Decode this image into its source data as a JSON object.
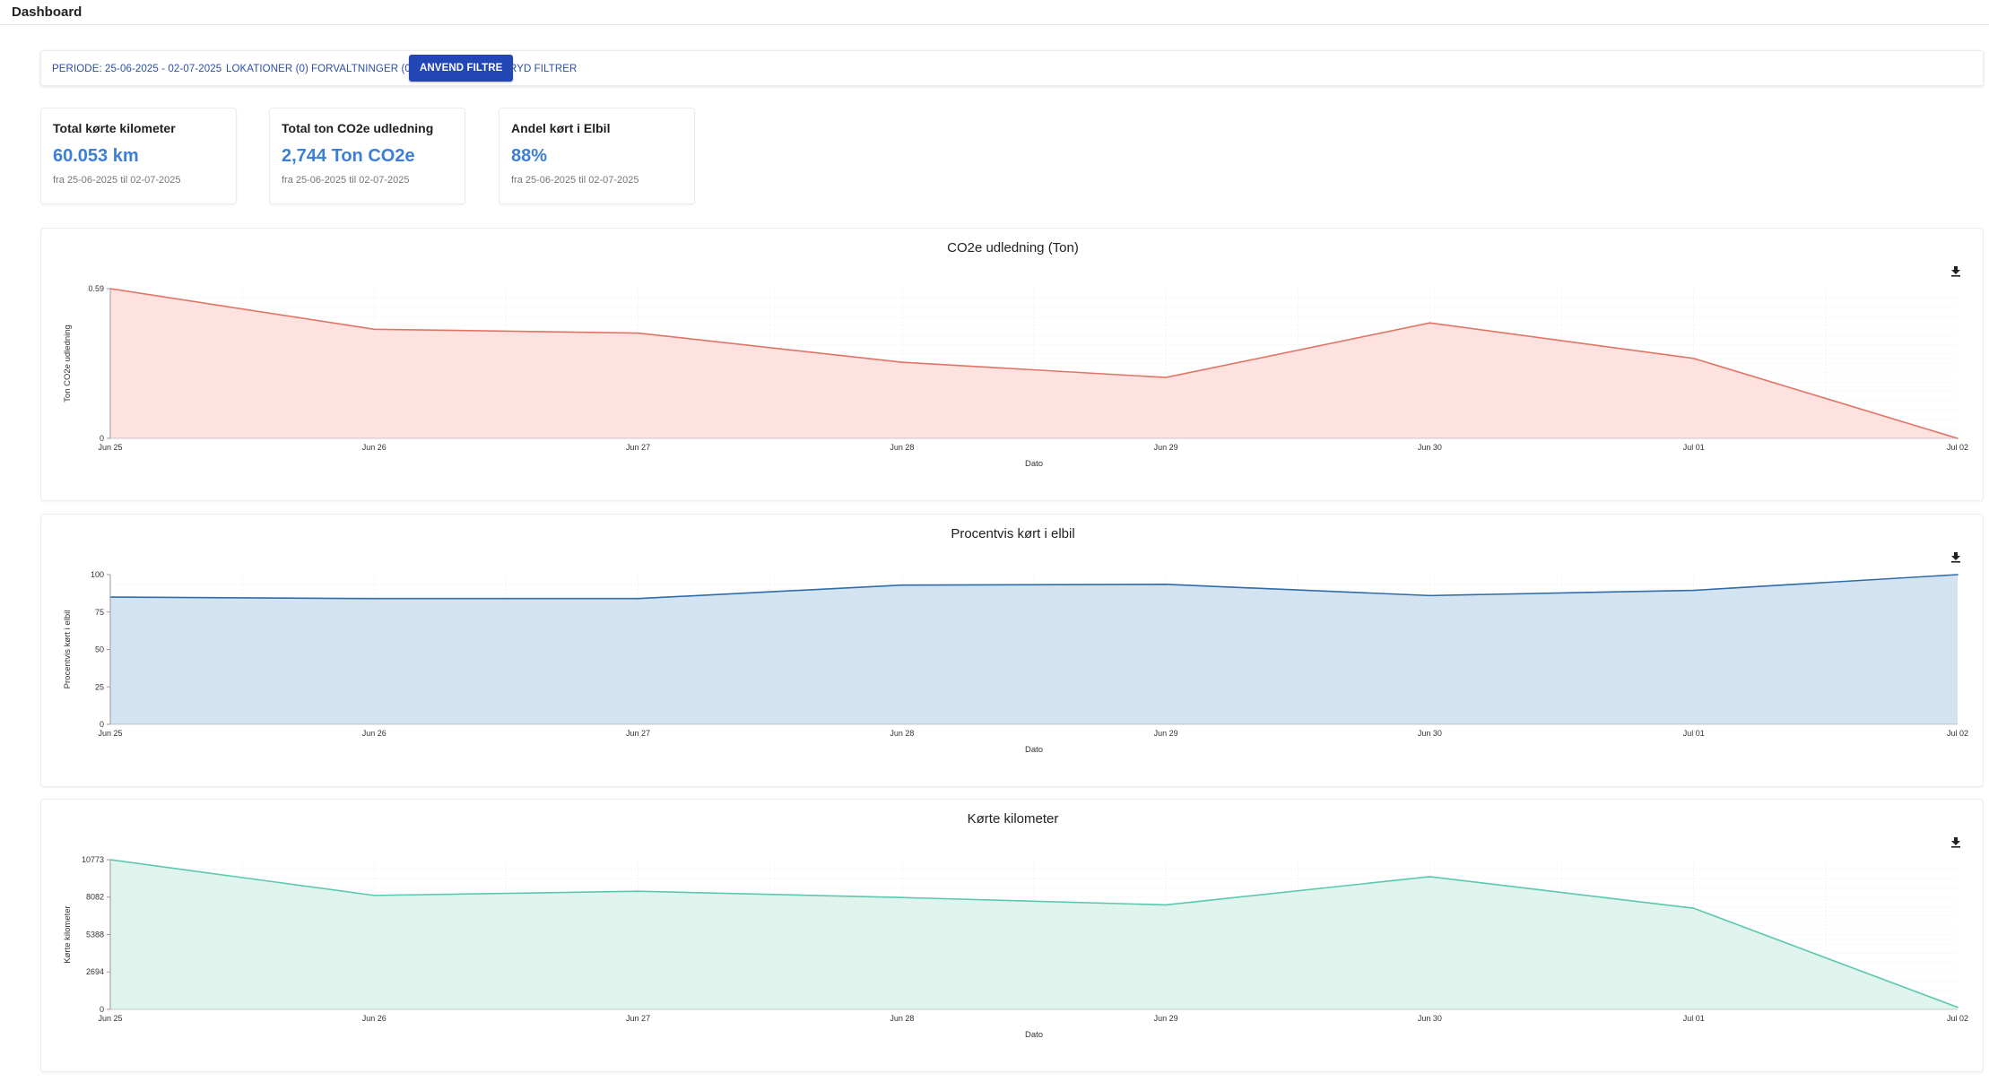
{
  "header": {
    "title": "Dashboard"
  },
  "filters": {
    "period": "PERIODE: 25-06-2025 - 02-07-2025",
    "locations": "LOKATIONER (0)",
    "administrations": "FORVALTNINGER (0)",
    "apply": "ANVEND FILTRE",
    "clear": "RYD FILTRER"
  },
  "kpis": [
    {
      "title": "Total kørte kilometer",
      "value": "60.053 km",
      "subtitle": "fra 25-06-2025 til 02-07-2025"
    },
    {
      "title": "Total ton CO2e udledning",
      "value": "2,744 Ton CO2e",
      "subtitle": "fra 25-06-2025 til 02-07-2025"
    },
    {
      "title": "Andel kørt i Elbil",
      "value": "88%",
      "subtitle": "fra 25-06-2025 til 02-07-2025"
    }
  ],
  "icons": {
    "download": "download-icon"
  },
  "chart_data": [
    {
      "type": "area",
      "title": "CO2e udledning (Ton)",
      "xlabel": "Dato",
      "ylabel": "Ton CO2e udledning",
      "x": [
        "Jun 25",
        "Jun 26",
        "Jun 27",
        "Jun 28",
        "Jun 29",
        "Jun 30",
        "Jul 01",
        "Jul 02"
      ],
      "values": [
        0.59,
        0.43,
        0.415,
        0.3,
        0.24,
        0.455,
        0.315,
        0.0
      ],
      "ylim": [
        0,
        0.59
      ],
      "yticks": [
        "0",
        "0.59"
      ],
      "grid": true,
      "color": "#e07566",
      "fill": "#fde0dd"
    },
    {
      "type": "area",
      "title": "Procentvis kørt i elbil",
      "xlabel": "Dato",
      "ylabel": "Procentvis kørt i elbil",
      "x": [
        "Jun 25",
        "Jun 26",
        "Jun 27",
        "Jun 28",
        "Jun 29",
        "Jun 30",
        "Jul 01",
        "Jul 02"
      ],
      "values": [
        85,
        84,
        84,
        93,
        93.5,
        86,
        89.5,
        100
      ],
      "ylim": [
        0,
        100
      ],
      "yticks": [
        "0",
        "25",
        "50",
        "75",
        "100"
      ],
      "grid": true,
      "color": "#2f6da8",
      "fill": "#d2e1f0"
    },
    {
      "type": "area",
      "title": "Kørte kilometer",
      "xlabel": "Dato",
      "ylabel": "Kørte kilometer",
      "x": [
        "Jun 25",
        "Jun 26",
        "Jun 27",
        "Jun 28",
        "Jun 29",
        "Jun 30",
        "Jul 01",
        "Jul 02"
      ],
      "values": [
        10773,
        8200,
        8500,
        8050,
        7520,
        9550,
        7280,
        150
      ],
      "ylim": [
        0,
        10773
      ],
      "yticks": [
        "0",
        "2694",
        "5388",
        "8082",
        "10773"
      ],
      "grid": true,
      "color": "#5cc8ae",
      "fill": "#dcf3ec"
    }
  ]
}
